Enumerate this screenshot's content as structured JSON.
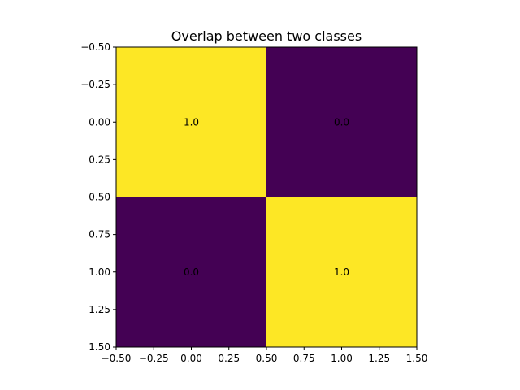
{
  "chart_data": {
    "type": "heatmap",
    "title": "Overlap between two classes",
    "xlabel": "",
    "ylabel": "",
    "colormap": "viridis",
    "colors": {
      "low": "#440154",
      "high": "#fde725"
    },
    "xlim": [
      -0.5,
      1.5
    ],
    "ylim": [
      1.5,
      -0.5
    ],
    "x_ticks": [
      "−0.50",
      "−0.25",
      "0.00",
      "0.25",
      "0.50",
      "0.75",
      "1.00",
      "1.25",
      "1.50"
    ],
    "y_ticks": [
      "−0.50",
      "−0.25",
      "0.00",
      "0.25",
      "0.50",
      "0.75",
      "1.00",
      "1.25",
      "1.50"
    ],
    "matrix": [
      [
        1.0,
        0.0
      ],
      [
        0.0,
        1.0
      ]
    ],
    "cell_labels": [
      [
        "1.0",
        "0.0"
      ],
      [
        "0.0",
        "1.0"
      ]
    ]
  }
}
